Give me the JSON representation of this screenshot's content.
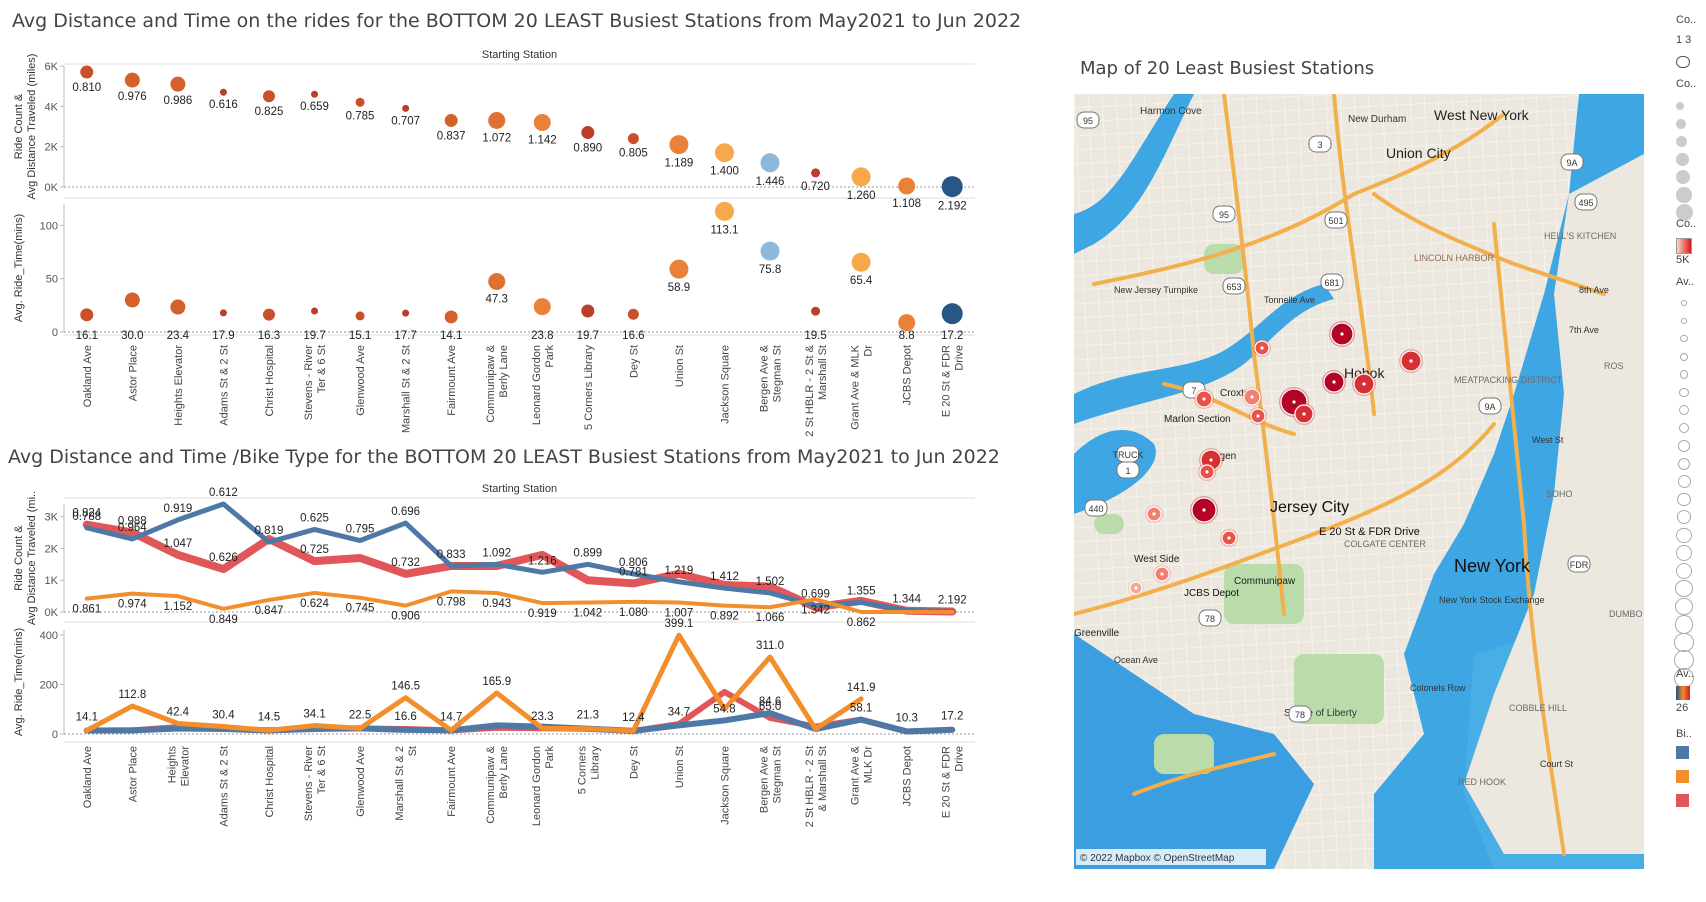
{
  "titles": {
    "top": "Avg Distance and Time on the rides for the BOTTOM 20 LEAST Busiest Stations from May2021 to Jun 2022",
    "bottom": "Avg Distance and Time /Bike Type for the BOTTOM 20 LEAST Busiest Stations from May2021 to Jun 2022",
    "map": "Map of 20 Least Busiest Stations"
  },
  "chart_data": [
    {
      "type": "scatter",
      "header": "Starting Station",
      "categories": [
        "Oakland Ave",
        "Astor Place",
        "Heights Elevator",
        "Adams St & 2 St",
        "Christ Hospital",
        "Stevens - River Ter & 6 St",
        "Glenwood Ave",
        "Marshall St & 2 St",
        "Fairmount Ave",
        "Communipaw & Berly Lane",
        "Leonard Gordon Park",
        "5 Corners Library",
        "Dey St",
        "Union St",
        "Jackson Square",
        "Bergen Ave & Stegman St",
        "2 St HBLR - 2 St & Marshall St",
        "Grant Ave & MLK Dr",
        "JCBS Depot",
        "E 20 St & FDR Drive"
      ],
      "category_labels": [
        [
          "Oakland Ave"
        ],
        [
          "Astor Place"
        ],
        [
          "Heights Elevator"
        ],
        [
          "Adams St & 2 St"
        ],
        [
          "Christ Hospital"
        ],
        [
          "Stevens - River",
          "Ter & 6 St"
        ],
        [
          "Glenwood Ave"
        ],
        [
          "Marshall St & 2 St"
        ],
        [
          "Fairmount Ave"
        ],
        [
          "Communipaw &",
          "Berly Lane"
        ],
        [
          "Leonard Gordon",
          "Park"
        ],
        [
          "5 Corners Library"
        ],
        [
          "Dey St"
        ],
        [
          "Union St"
        ],
        [
          "Jackson Square"
        ],
        [
          "Bergen Ave &",
          "Stegman St"
        ],
        [
          "2 St HBLR - 2 St &",
          "Marshall St"
        ],
        [
          "Grant Ave & MLK",
          "Dr"
        ],
        [
          "JCBS Depot"
        ],
        [
          "E 20 St & FDR",
          "Drive"
        ]
      ],
      "panels": [
        {
          "ylabel": "Ride Count & Avg Distance Traveled (miles)",
          "ylim": [
            0,
            6000
          ],
          "ticks": [
            0,
            2000,
            4000,
            6000
          ],
          "tick_labels": [
            "0K",
            "2K",
            "4K",
            "6K"
          ],
          "values": [
            5700,
            5300,
            5100,
            4700,
            4500,
            4600,
            4200,
            3900,
            3300,
            3300,
            3200,
            2700,
            2400,
            2100,
            1700,
            1200,
            700,
            500,
            50,
            20
          ],
          "labels": [
            "0.810",
            "0.976",
            "0.986",
            "0.616",
            "0.825",
            "0.659",
            "0.785",
            "0.707",
            "0.837",
            "1.072",
            "1.142",
            "0.890",
            "0.805",
            "1.189",
            "1.400",
            "1.446",
            "0.720",
            "1.260",
            "1.108",
            "2.192"
          ]
        },
        {
          "ylabel": "Avg. Ride_Time(mins)",
          "ylim": [
            0,
            120
          ],
          "ticks": [
            0,
            50,
            100
          ],
          "tick_labels": [
            "0",
            "50",
            "100"
          ],
          "values": [
            16.1,
            30.0,
            23.4,
            17.9,
            16.3,
            19.7,
            15.1,
            17.7,
            14.1,
            47.3,
            23.8,
            19.7,
            16.6,
            58.9,
            113.1,
            75.8,
            19.5,
            65.4,
            8.8,
            17.2
          ],
          "labels": [
            "16.1",
            "30.0",
            "23.4",
            "17.9",
            "16.3",
            "19.7",
            "15.1",
            "17.7",
            "14.1",
            "47.3",
            "23.8",
            "19.7",
            "16.6",
            "58.9",
            "113.1",
            "75.8",
            "19.5",
            "65.4",
            "8.8",
            "17.2"
          ]
        }
      ],
      "colors": [
        "#c8471f",
        "#d2571f",
        "#d2571f",
        "#b5351c",
        "#c8471f",
        "#b5351c",
        "#c8471f",
        "#b5351c",
        "#d2571f",
        "#dd6a28",
        "#e87b2c",
        "#b5351c",
        "#c8471f",
        "#e87b2c",
        "#f5a441",
        "#89b5d8",
        "#b5351c",
        "#f5a441",
        "#e87b2c",
        "#1c4e80"
      ],
      "sizes": [
        10,
        12,
        12,
        4,
        9,
        4,
        6,
        4,
        10,
        14,
        14,
        10,
        8,
        16,
        16,
        16,
        6,
        16,
        14,
        18
      ]
    },
    {
      "type": "line",
      "header": "Starting Station",
      "categories": [
        "Oakland Ave",
        "Astor Place",
        "Heights Elevator",
        "Adams St & 2 St",
        "Christ Hospital",
        "Stevens - River Ter & 6 St",
        "Glenwood Ave",
        "Marshall St & 2 St",
        "Fairmount Ave",
        "Communipaw & Berly Lane",
        "Leonard Gordon Park",
        "5 Corners Library",
        "Dey St",
        "Union St",
        "Jackson Square",
        "Bergen Ave & Stegman St",
        "2 St HBLR - 2 St & Marshall St",
        "Grant Ave & MLK Dr",
        "JCBS Depot",
        "E 20 St & FDR Drive"
      ],
      "category_labels": [
        [
          "Oakland Ave"
        ],
        [
          "Astor Place"
        ],
        [
          "Heights",
          "Elevator"
        ],
        [
          "Adams St & 2 St"
        ],
        [
          "Christ Hospital"
        ],
        [
          "Stevens - River",
          "Ter & 6 St"
        ],
        [
          "Glenwood Ave"
        ],
        [
          "Marshall St & 2",
          "St"
        ],
        [
          "Fairmount Ave"
        ],
        [
          "Communipaw &",
          "Berly Lane"
        ],
        [
          "Leonard Gordon",
          "Park"
        ],
        [
          "5 Corners",
          "Library"
        ],
        [
          "Dey St"
        ],
        [
          "Union St"
        ],
        [
          "Jackson Square"
        ],
        [
          "Bergen Ave &",
          "Stegman St"
        ],
        [
          "2 St HBLR - 2 St",
          "& Marshall St"
        ],
        [
          "Grant Ave &",
          "MLK Dr"
        ],
        [
          "JCBS Depot"
        ],
        [
          "E 20 St & FDR",
          "Drive"
        ]
      ],
      "series_colors": [
        "#4e79a7",
        "#f28e2b",
        "#e15759"
      ],
      "panels": [
        {
          "ylabel": "Ride Count & Avg Distance Traveled (mi..",
          "ylim": [
            0,
            3400
          ],
          "ticks": [
            0,
            1000,
            2000,
            3000
          ],
          "tick_labels": [
            "0K",
            "1K",
            "2K",
            "3K"
          ],
          "series": [
            {
              "values": [
                2650,
                2300,
                2900,
                3400,
                2200,
                2600,
                2250,
                2800,
                1450,
                1500,
                1250,
                1500,
                1200,
                950,
                750,
                600,
                200,
                300,
                50,
                20
              ],
              "labels": [
                "0.788",
                "0.964",
                "0.919",
                "0.612",
                "0.819",
                "0.625",
                "0.795",
                "0.696",
                "0.833",
                "1.092",
                "1.216",
                "0.899",
                "0.806",
                "1.219",
                "1.412",
                "1.502",
                "0.699",
                "1.355",
                "1.344",
                "2.192"
              ]
            },
            {
              "values": [
                420,
                580,
                500,
                100,
                380,
                600,
                450,
                200,
                650,
                600,
                280,
                300,
                320,
                300,
                200,
                150,
                400,
                0,
                0,
                0
              ],
              "labels": [
                "0.861",
                "0.974",
                "1.152",
                "0.849",
                "0.847",
                "0.624",
                "0.745",
                "0.906",
                "0.798",
                "0.943",
                "0.919",
                "1.042",
                "1.080",
                "1.007",
                "0.892",
                "1.066",
                "1.342",
                "0.862",
                "",
                ""
              ]
            },
            {
              "values": [
                2750,
                2500,
                1800,
                1350,
                2300,
                1600,
                1700,
                1200,
                1450,
                1450,
                1800,
                1000,
                900,
                1200,
                850,
                800,
                150,
                350,
                40,
                15
              ],
              "labels": [
                "0.824",
                "0.988",
                "1.047",
                "0.626",
                "",
                "0.725",
                "",
                "0.732",
                "",
                "",
                "",
                "",
                "0.781",
                "",
                "",
                "",
                "",
                "",
                "",
                ""
              ]
            }
          ]
        },
        {
          "ylabel": "Avg. Ride_Time(mins)",
          "ylim": [
            0,
            420
          ],
          "ticks": [
            0,
            200,
            400
          ],
          "tick_labels": [
            "0",
            "200",
            "400"
          ],
          "series": [
            {
              "values": [
                14.1,
                14.5,
                22.0,
                20.0,
                14.5,
                20.0,
                22.5,
                16.6,
                14.7,
                35.0,
                30.0,
                21.3,
                12.4,
                34.7,
                54.8,
                84.6,
                20.0,
                58.1,
                10.3,
                17.2
              ],
              "labels": [
                "14.1",
                "",
                "",
                "",
                "14.5",
                "",
                "22.5",
                "16.6",
                "14.7",
                "",
                "",
                "21.3",
                "12.4",
                "34.7",
                "54.8",
                "84.6",
                "",
                "58.1",
                "10.3",
                "17.2"
              ]
            },
            {
              "values": [
                14.1,
                112.8,
                42.4,
                30.4,
                14.5,
                34.1,
                22.5,
                146.5,
                14.7,
                165.9,
                23.3,
                21.3,
                12.4,
                399.1,
                100.0,
                311.0,
                20.0,
                141.9,
                null,
                null
              ],
              "labels": [
                "",
                "112.8",
                "42.4",
                "30.4",
                "",
                "34.1",
                "",
                "146.5",
                "",
                "165.9",
                "23.3",
                "",
                "",
                "399.1",
                "",
                "311.0",
                "",
                "141.9",
                "",
                ""
              ]
            },
            {
              "values": [
                14.1,
                14.5,
                28.0,
                22.0,
                14.5,
                22.0,
                22.5,
                20.0,
                14.7,
                25.0,
                23.3,
                21.3,
                12.4,
                40.0,
                170.0,
                65.0,
                30.0,
                58.1,
                10.3,
                17.2
              ],
              "labels": [
                "",
                "",
                "",
                "",
                "",
                "",
                "",
                "",
                "",
                "",
                "",
                "",
                "",
                "",
                "",
                "65.0",
                "",
                "",
                "",
                ""
              ]
            }
          ]
        }
      ]
    }
  ],
  "map": {
    "attribution": "© 2022 Mapbox © OpenStreetMap",
    "place_labels": [
      {
        "text": "Harmon Cove"
      },
      {
        "text": "New Durham"
      },
      {
        "text": "West New York"
      },
      {
        "text": "Union City"
      },
      {
        "text": "New Jersey Turnpike"
      },
      {
        "text": "Tonnelle Ave"
      },
      {
        "text": "LINCOLN HARBOR"
      },
      {
        "text": "HELL'S KITCHEN"
      },
      {
        "text": "Hobok"
      },
      {
        "text": "Croxton"
      },
      {
        "text": "Marlon Section"
      },
      {
        "text": "MEATPACKING DISTRICT"
      },
      {
        "text": "Bergen"
      },
      {
        "text": "Jersey City"
      },
      {
        "text": "E 20 St & FDR Drive"
      },
      {
        "text": "COLGATE CENTER"
      },
      {
        "text": "New York"
      },
      {
        "text": "SOHO"
      },
      {
        "text": "West Side"
      },
      {
        "text": "Communipaw"
      },
      {
        "text": "JCBS Depot"
      },
      {
        "text": "Greenville"
      },
      {
        "text": "Ocean Ave"
      },
      {
        "text": "New York Stock Exchange"
      },
      {
        "text": "DUMBO"
      },
      {
        "text": "Colonels Row"
      },
      {
        "text": "Statue of Liberty"
      },
      {
        "text": "COBBLE HILL"
      },
      {
        "text": "RED HOOK"
      },
      {
        "text": "Court St"
      },
      {
        "text": "8th Ave"
      },
      {
        "text": "7th Ave"
      },
      {
        "text": "West St"
      },
      {
        "text": "ROS"
      }
    ],
    "route_shields": [
      "95",
      "3",
      "495",
      "9A",
      "501",
      "653",
      "681",
      "1",
      "9A",
      "440",
      "78",
      "78",
      "FDR",
      "7",
      "95",
      "TRUCK"
    ],
    "marker_colors": [
      "#b40426",
      "#d73033",
      "#e8524a",
      "#f28070",
      "#f4a89a"
    ]
  },
  "legend": {
    "items": [
      "Co..",
      "1 3",
      "Co..",
      "Co..",
      "5K",
      "Av..",
      "Av..",
      "26",
      "Bi.."
    ],
    "bike_colors": [
      "#4e79a7",
      "#f28e2b",
      "#e15759"
    ]
  }
}
